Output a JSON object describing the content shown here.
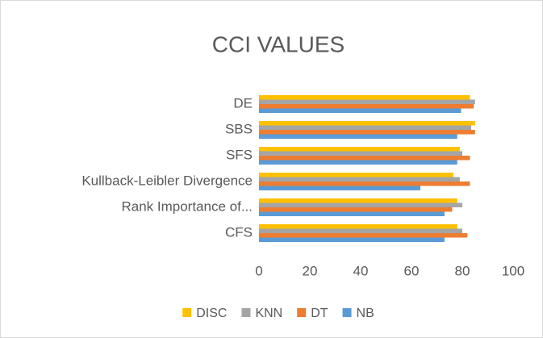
{
  "chart_data": {
    "type": "hbar",
    "title": "CCI VALUES",
    "categories": [
      "DE",
      "SBS",
      "SFS",
      "Kullback-Leibler Divergence",
      "Rank Importance of...",
      "CFS"
    ],
    "series": [
      {
        "name": "DISC",
        "color": "#ffc000",
        "values": [
          83,
          85,
          79,
          76.5,
          78,
          78
        ]
      },
      {
        "name": "KNN",
        "color": "#a5a5a5",
        "values": [
          85,
          83.5,
          80,
          79,
          80,
          80
        ]
      },
      {
        "name": "DT",
        "color": "#ed7d31",
        "values": [
          84.5,
          85,
          83,
          83,
          76,
          82
        ]
      },
      {
        "name": "NB",
        "color": "#5b9bd5",
        "values": [
          79.5,
          78,
          78,
          63.5,
          73,
          73
        ]
      }
    ],
    "xlim": [
      0,
      100
    ],
    "xticks": [
      0,
      20,
      40,
      60,
      80,
      100
    ],
    "legend": "bottom"
  }
}
